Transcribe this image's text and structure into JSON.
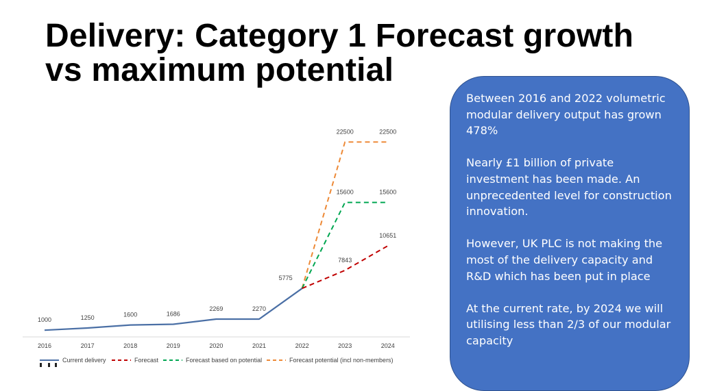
{
  "slide": {
    "title_line1": "Delivery: Category 1 Forecast growth",
    "title_line2": "vs maximum potential"
  },
  "info_box": {
    "paragraphs": [
      "Between 2016 and 2022 volumetric modular delivery output has grown 478%",
      "Nearly £1 billion of private investment has been made. An unprecedented level for construction innovation.",
      "However, UK PLC is not making the most of the delivery capacity and R&D which has been put in place",
      "At the current rate, by 2024 we will utilising less than 2/3 of our modular capacity"
    ],
    "background_color": "#4472c4"
  },
  "chart_data": {
    "type": "line",
    "x": [
      "2016",
      "2017",
      "2018",
      "2019",
      "2020",
      "2021",
      "2022",
      "2023",
      "2024"
    ],
    "series": [
      {
        "name": "Current delivery",
        "color": "#4a6fa5",
        "style": "solid",
        "values": [
          1000,
          1250,
          1600,
          1686,
          2269,
          2270,
          5775,
          null,
          null
        ],
        "labels": [
          "1000",
          "1250",
          "1600",
          "1686",
          "2269",
          "2270",
          "5775",
          "",
          ""
        ]
      },
      {
        "name": "Forecast",
        "color": "#c00000",
        "style": "dashed",
        "values": [
          null,
          null,
          null,
          null,
          null,
          null,
          5775,
          7843,
          10651
        ],
        "labels": [
          "",
          "",
          "",
          "",
          "",
          "",
          "",
          "7843",
          "10651"
        ]
      },
      {
        "name": "Forecast based on potential",
        "color": "#00a651",
        "style": "dashed",
        "values": [
          null,
          null,
          null,
          null,
          null,
          null,
          5775,
          15600,
          15600
        ],
        "labels": [
          "",
          "",
          "",
          "",
          "",
          "",
          "",
          "15600",
          "15600"
        ]
      },
      {
        "name": "Forecast potential (incl non-members)",
        "color": "#ed8936",
        "style": "dashed",
        "values": [
          null,
          null,
          null,
          null,
          null,
          null,
          5775,
          22500,
          22500
        ],
        "labels": [
          "",
          "",
          "",
          "",
          "",
          "",
          "",
          "22500",
          "22500"
        ]
      }
    ],
    "ylim": [
      0,
      24000
    ],
    "grid": false,
    "legend_position": "bottom"
  }
}
